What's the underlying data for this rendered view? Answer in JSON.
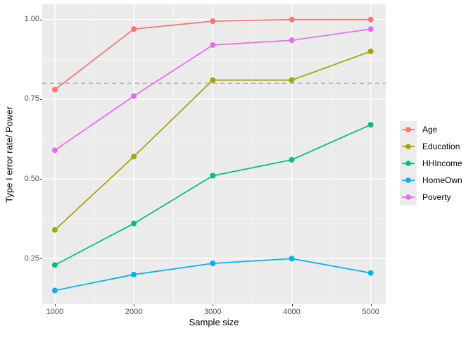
{
  "figure": {
    "background": "#FFFFFF",
    "panel_background": "#EBEBEB",
    "grid_major_color": "#FFFFFF",
    "grid_minor_color": "#F4F4F4",
    "axis_text_color": "#4D4D4D",
    "threshold_line_color": "#A9A9A9",
    "legend_key_background": "#ECECEC"
  },
  "chart_data": {
    "type": "line",
    "title": "",
    "xlabel": "Sample size",
    "ylabel": "Type I error rate/ Power",
    "x": [
      1000,
      2000,
      3000,
      4000,
      5000
    ],
    "x_tick_labels": [
      "1000",
      "2000",
      "3000",
      "4000",
      "5000"
    ],
    "y_tick_values": [
      0.25,
      0.5,
      0.75,
      1.0
    ],
    "y_tick_labels": [
      "0.25",
      "0.50",
      "0.75",
      "1.00"
    ],
    "x_minor_ticks": [
      1500,
      2500,
      3500,
      4500
    ],
    "y_minor_ticks": [
      0.125,
      0.375,
      0.625,
      0.875
    ],
    "xlim": [
      840,
      5190
    ],
    "ylim": [
      0.107,
      1.048
    ],
    "grid": true,
    "legend_position": "right",
    "threshold_line": {
      "y": 0.8,
      "style": "dashed"
    },
    "series": [
      {
        "name": "Age",
        "color": "#F8766D",
        "values": [
          0.78,
          0.97,
          0.995,
          1.0,
          1.0
        ]
      },
      {
        "name": "Education",
        "color": "#A3A500",
        "values": [
          0.34,
          0.57,
          0.81,
          0.81,
          0.9
        ]
      },
      {
        "name": "HHIncome",
        "color": "#00BF7D",
        "values": [
          0.23,
          0.36,
          0.51,
          0.56,
          0.67
        ]
      },
      {
        "name": "HomeOwn",
        "color": "#00B0F6",
        "values": [
          0.15,
          0.2,
          0.235,
          0.25,
          0.205
        ]
      },
      {
        "name": "Poverty",
        "color": "#E76BF3",
        "values": [
          0.59,
          0.76,
          0.92,
          0.935,
          0.97
        ]
      }
    ]
  }
}
